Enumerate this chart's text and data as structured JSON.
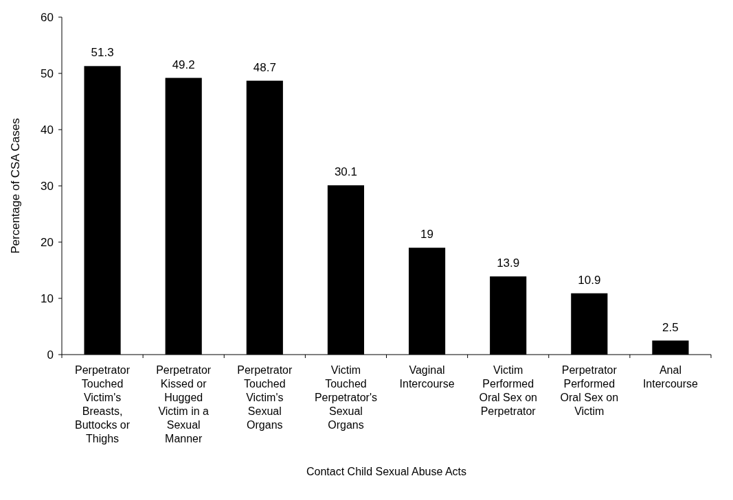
{
  "chart_data": {
    "type": "bar",
    "xlabel": "Contact Child Sexual Abuse Acts",
    "ylabel": "Percentage of CSA Cases",
    "categories": [
      "Perpetrator Touched Victim's Breasts, Buttocks or Thighs",
      "Perpetrator Kissed or Hugged Victim in a Sexual Manner",
      "Perpetrator Touched Victim's Sexual Organs",
      "Victim Touched Perpetrator's Sexual Organs",
      "Vaginal Intercourse",
      "Victim Performed Oral Sex on Perpetrator",
      "Perpetrator Performed Oral Sex on Victim",
      "Anal Intercourse"
    ],
    "values": [
      51.3,
      49.2,
      48.7,
      30.1,
      19,
      13.9,
      10.9,
      2.5
    ],
    "color": "#000000",
    "ylim": [
      0,
      60
    ],
    "yticks": [
      0,
      10,
      20,
      30,
      40,
      50,
      60
    ],
    "data_labels": true
  }
}
